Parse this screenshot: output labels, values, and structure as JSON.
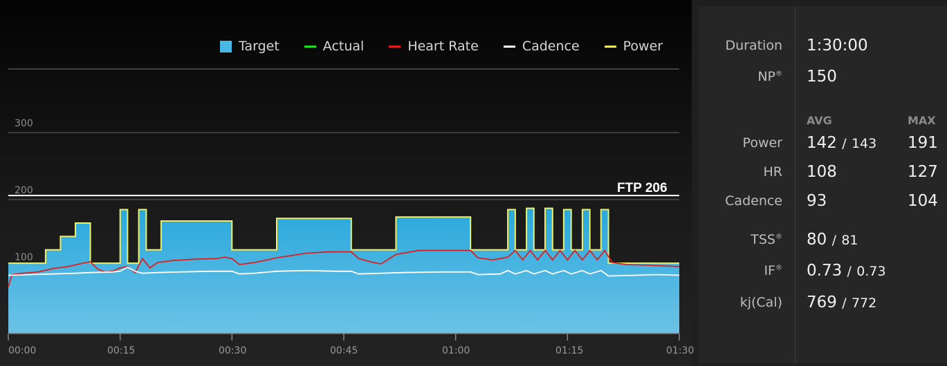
{
  "chart_data": {
    "type": "area",
    "legend": [
      {
        "name": "Target",
        "color": "#4ab8e6",
        "kind": "box"
      },
      {
        "name": "Actual",
        "color": "#22dd22",
        "kind": "line"
      },
      {
        "name": "Heart Rate",
        "color": "#dd1f1f",
        "kind": "line"
      },
      {
        "name": "Cadence",
        "color": "#ffffff",
        "kind": "line"
      },
      {
        "name": "Power",
        "color": "#f0f066",
        "kind": "line"
      }
    ],
    "x_ticks": [
      "00:00",
      "00:15",
      "00:30",
      "00:45",
      "01:00",
      "01:15",
      "01:30"
    ],
    "x_range_min": [
      0,
      90
    ],
    "y_ticks": [
      "100",
      "200",
      "300"
    ],
    "y_range": [
      0,
      400
    ],
    "ftp_label": "FTP 206",
    "ftp_value": 206,
    "target": [
      [
        0,
        105
      ],
      [
        5,
        105
      ],
      [
        5,
        125
      ],
      [
        7,
        125
      ],
      [
        7,
        145
      ],
      [
        9,
        145
      ],
      [
        9,
        165
      ],
      [
        11,
        165
      ],
      [
        11,
        105
      ],
      [
        15,
        105
      ],
      [
        15,
        185
      ],
      [
        16,
        185
      ],
      [
        16,
        105
      ],
      [
        17.5,
        105
      ],
      [
        17.5,
        185
      ],
      [
        18.5,
        185
      ],
      [
        18.5,
        125
      ],
      [
        20.5,
        125
      ],
      [
        20.5,
        168
      ],
      [
        30,
        168
      ],
      [
        30,
        125
      ],
      [
        36,
        125
      ],
      [
        36,
        172
      ],
      [
        46,
        172
      ],
      [
        46,
        125
      ],
      [
        52,
        125
      ],
      [
        52,
        174
      ],
      [
        62,
        174
      ],
      [
        62,
        125
      ],
      [
        67,
        125
      ],
      [
        67,
        185
      ],
      [
        68,
        185
      ],
      [
        68,
        125
      ],
      [
        69.5,
        125
      ],
      [
        69.5,
        187
      ],
      [
        70.5,
        187
      ],
      [
        70.5,
        125
      ],
      [
        72,
        125
      ],
      [
        72,
        187
      ],
      [
        73,
        187
      ],
      [
        73,
        125
      ],
      [
        74.5,
        125
      ],
      [
        74.5,
        185
      ],
      [
        75.5,
        185
      ],
      [
        75.5,
        125
      ],
      [
        77,
        125
      ],
      [
        77,
        185
      ],
      [
        78,
        185
      ],
      [
        78,
        125
      ],
      [
        79.5,
        125
      ],
      [
        79.5,
        185
      ],
      [
        80.5,
        185
      ],
      [
        80.5,
        105
      ],
      [
        90,
        105
      ]
    ],
    "heart_rate": [
      [
        0,
        70
      ],
      [
        0.5,
        88
      ],
      [
        2,
        90
      ],
      [
        4,
        92
      ],
      [
        6,
        97
      ],
      [
        8,
        100
      ],
      [
        10,
        105
      ],
      [
        11,
        107
      ],
      [
        12,
        96
      ],
      [
        13,
        92
      ],
      [
        14,
        93
      ],
      [
        15,
        98
      ],
      [
        16,
        100
      ],
      [
        17,
        91
      ],
      [
        18,
        112
      ],
      [
        19,
        98
      ],
      [
        20,
        106
      ],
      [
        22,
        109
      ],
      [
        25,
        111
      ],
      [
        28,
        112
      ],
      [
        29,
        114
      ],
      [
        30,
        112
      ],
      [
        31,
        103
      ],
      [
        33,
        106
      ],
      [
        36,
        113
      ],
      [
        40,
        120
      ],
      [
        43,
        122
      ],
      [
        46,
        122
      ],
      [
        47,
        112
      ],
      [
        49,
        106
      ],
      [
        50,
        104
      ],
      [
        52,
        118
      ],
      [
        55,
        124
      ],
      [
        59,
        124
      ],
      [
        62,
        124
      ],
      [
        63,
        113
      ],
      [
        65,
        110
      ],
      [
        67,
        114
      ],
      [
        68,
        124
      ],
      [
        69,
        110
      ],
      [
        70,
        124
      ],
      [
        71,
        110
      ],
      [
        72,
        124
      ],
      [
        73,
        110
      ],
      [
        74,
        124
      ],
      [
        75,
        110
      ],
      [
        76,
        124
      ],
      [
        77,
        110
      ],
      [
        78,
        124
      ],
      [
        79,
        110
      ],
      [
        80,
        124
      ],
      [
        81,
        106
      ],
      [
        83,
        103
      ],
      [
        86,
        102
      ],
      [
        90,
        100
      ]
    ],
    "cadence": [
      [
        0,
        87
      ],
      [
        3,
        88
      ],
      [
        6,
        89
      ],
      [
        9,
        90
      ],
      [
        11,
        91
      ],
      [
        14,
        92
      ],
      [
        15,
        93
      ],
      [
        16,
        99
      ],
      [
        17,
        93
      ],
      [
        18,
        90
      ],
      [
        20,
        91
      ],
      [
        23,
        92
      ],
      [
        27,
        93
      ],
      [
        30,
        93
      ],
      [
        31,
        89
      ],
      [
        33,
        90
      ],
      [
        36,
        93
      ],
      [
        40,
        94
      ],
      [
        44,
        93
      ],
      [
        46,
        93
      ],
      [
        47,
        89
      ],
      [
        50,
        90
      ],
      [
        53,
        91
      ],
      [
        58,
        92
      ],
      [
        62,
        92
      ],
      [
        63,
        88
      ],
      [
        66,
        89
      ],
      [
        67,
        94
      ],
      [
        68,
        89
      ],
      [
        69.5,
        94
      ],
      [
        70.5,
        89
      ],
      [
        72,
        94
      ],
      [
        73,
        89
      ],
      [
        74.5,
        94
      ],
      [
        75.5,
        89
      ],
      [
        77,
        94
      ],
      [
        78,
        89
      ],
      [
        79.5,
        94
      ],
      [
        80.5,
        86
      ],
      [
        84,
        87
      ],
      [
        87,
        88
      ],
      [
        90,
        87
      ]
    ]
  },
  "stats": {
    "duration_label": "Duration",
    "duration_value": "1:30:00",
    "np_label": "NP",
    "np_value": "150",
    "reg_mark": "®",
    "avg_header": "AVG",
    "max_header": "MAX",
    "power_label": "Power",
    "power_avg": "142",
    "power_sep": "/",
    "power_avg2": "143",
    "power_max": "191",
    "hr_label": "HR",
    "hr_avg": "108",
    "hr_max": "127",
    "cadence_label": "Cadence",
    "cadence_avg": "93",
    "cadence_max": "104",
    "tss_label": "TSS",
    "tss_value": "80",
    "tss_sep": "/",
    "tss_value2": "81",
    "if_label": "IF",
    "if_value": "0.73",
    "if_sep": "/",
    "if_value2": "0.73",
    "kj_label": "kj(Cal)",
    "kj_value": "769",
    "kj_sep": "/",
    "kj_value2": "772"
  }
}
